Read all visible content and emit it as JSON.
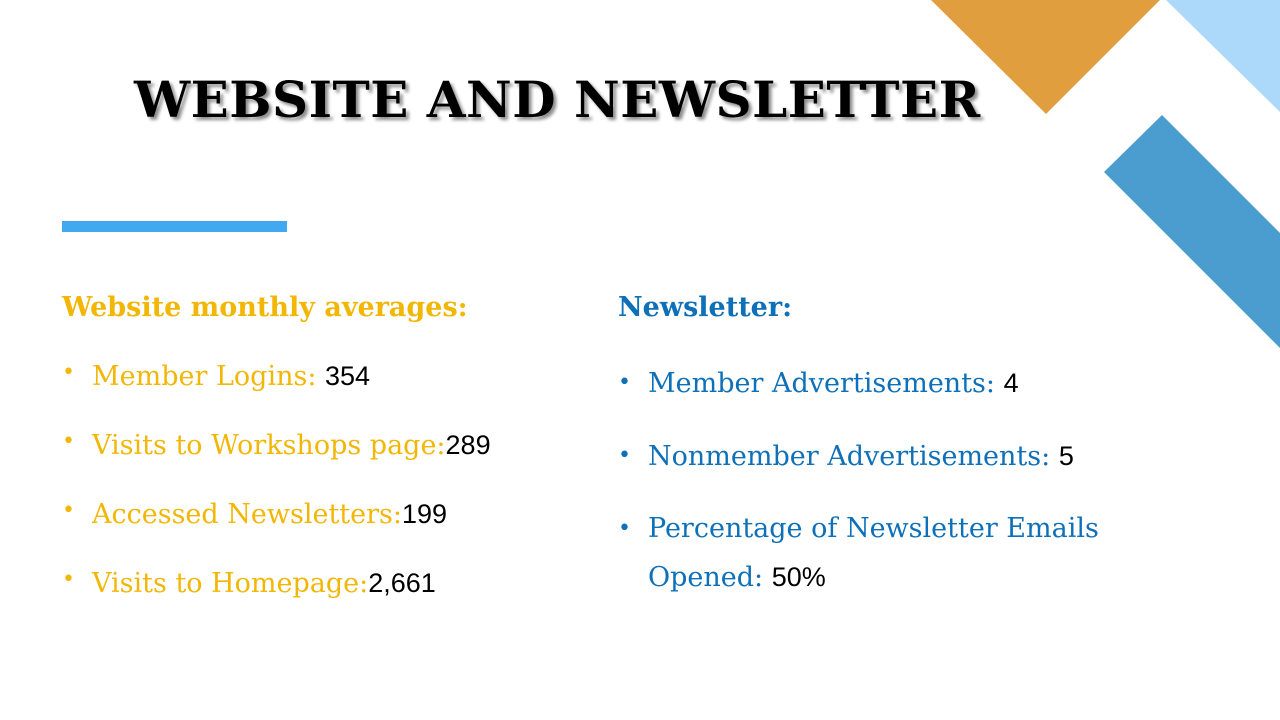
{
  "slide": {
    "title": "WEBSITE AND NEWSLETTER",
    "colors": {
      "title": "#000000",
      "accent_bar": "#41a9f0",
      "website_text": "#f2b705",
      "newsletter_text": "#0d70b8",
      "value_text": "#000000",
      "deco_orange": "#e09e3e",
      "deco_light_blue": "#acd8f9",
      "deco_mid_blue": "#4b9ccf"
    }
  },
  "website": {
    "heading": "Website monthly averages:",
    "items": [
      {
        "label": "Member Logins: ",
        "value": "354"
      },
      {
        "label": "Visits to Workshops page:",
        "value": "289"
      },
      {
        "label": "Accessed Newsletters:",
        "value": "199"
      },
      {
        "label": "Visits to Homepage:",
        "value": "2,661"
      }
    ]
  },
  "newsletter": {
    "heading": "Newsletter:",
    "items": [
      {
        "label": "Member Advertisements: ",
        "value": "4"
      },
      {
        "label": "Nonmember Advertisements: ",
        "value": "5"
      },
      {
        "label": "Percentage of Newsletter Emails Opened: ",
        "value": "50%"
      }
    ]
  }
}
